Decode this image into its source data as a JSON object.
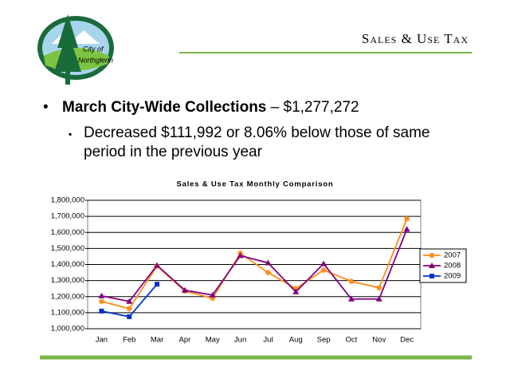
{
  "header": {
    "title": "Sales & Use Tax",
    "logo_top": "City of",
    "logo_bottom": "Northglenn"
  },
  "bullets": {
    "main_bold": "March City-Wide Collections",
    "main_rest": "– $1,277,272",
    "sub": "Decreased $111,992 or 8.06% below those of same period in the previous year"
  },
  "chart_data": {
    "type": "line",
    "title": "Sales & Use Tax Monthly Comparison",
    "categories": [
      "Jan",
      "Feb",
      "Mar",
      "Apr",
      "May",
      "Jun",
      "Jul",
      "Aug",
      "Sep",
      "Oct",
      "Nov",
      "Dec"
    ],
    "series": [
      {
        "name": "2007",
        "color": "#ff8c1a",
        "values": [
          1170000,
          1125000,
          1390000,
          1235000,
          1190000,
          1470000,
          1350000,
          1250000,
          1365000,
          1295000,
          1255000,
          1685000
        ]
      },
      {
        "name": "2008",
        "color": "#800080",
        "values": [
          1205000,
          1170000,
          1395000,
          1240000,
          1210000,
          1455000,
          1410000,
          1230000,
          1405000,
          1185000,
          1185000,
          1620000
        ]
      },
      {
        "name": "2009",
        "color": "#0033cc",
        "values": [
          1110000,
          1075000,
          1277272,
          null,
          null,
          null,
          null,
          null,
          null,
          null,
          null,
          null
        ]
      }
    ],
    "ylim": [
      1000000,
      1800000
    ],
    "yticks": [
      {
        "value": 1000000,
        "label": "1,000,000"
      },
      {
        "value": 1100000,
        "label": "1,100,000"
      },
      {
        "value": 1200000,
        "label": "1,200,000"
      },
      {
        "value": 1300000,
        "label": "1,300,000"
      },
      {
        "value": 1400000,
        "label": "1,400,000"
      },
      {
        "value": 1500000,
        "label": "1,500,000"
      },
      {
        "value": 1600000,
        "label": "1,600,000"
      },
      {
        "value": 1700000,
        "label": "1,700,000"
      },
      {
        "value": 1800000,
        "label": "1,800,000"
      }
    ],
    "grid": true,
    "legend": "right"
  }
}
